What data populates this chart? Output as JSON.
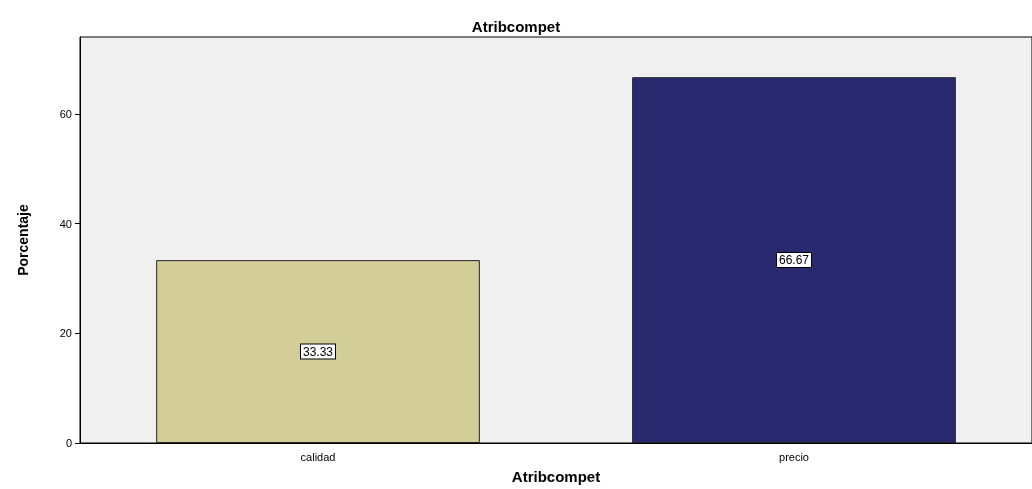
{
  "chart_data": {
    "type": "bar",
    "title": "Atribcompet",
    "xlabel": "Atribcompet",
    "ylabel": "Porcentaje",
    "categories": [
      "calidad",
      "precio"
    ],
    "values": [
      33.33,
      66.67
    ],
    "colors": [
      "#d3ce98",
      "#29296f"
    ],
    "ylim": [
      0,
      74
    ],
    "yticks": [
      0,
      20,
      40,
      60
    ],
    "grid": false,
    "data_labels": true
  }
}
